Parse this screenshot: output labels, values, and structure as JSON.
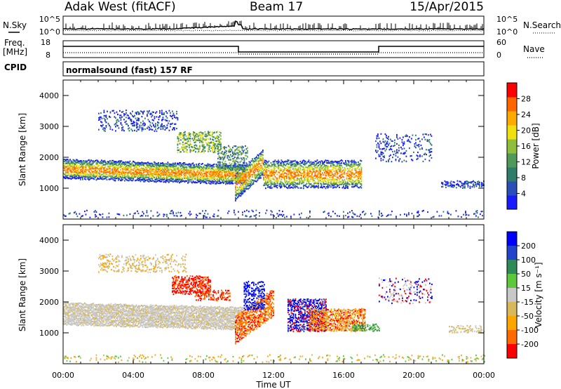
{
  "header": {
    "radar": "Adak West (fitACF)",
    "beam": "Beam 17",
    "date": "15/Apr/2015"
  },
  "noise_panel": {
    "left_label": "N.Sky",
    "right_label": "N.Search",
    "left_ticks": [
      "10^5",
      "10^0"
    ],
    "right_ticks": [
      "10^5",
      "10^0"
    ]
  },
  "freq_panel": {
    "left_label_1": "Freq.",
    "left_label_2": "[MHz]",
    "left_ticks": [
      "18",
      "8"
    ],
    "right_label": "Nave",
    "right_ticks": [
      "60",
      "0"
    ],
    "cpid_label": "CPID",
    "mode": "normalsound (fast) 157 RF"
  },
  "colors": {
    "power": [
      "#1a1aff",
      "#2a4fb8",
      "#2e7d6a",
      "#4f9a58",
      "#8fbf3a",
      "#f0e010",
      "#ffaa00",
      "#ff6600",
      "#ff0000"
    ],
    "velocity": [
      "#ff0000",
      "#ff6a00",
      "#ffa500",
      "#d8b85a",
      "#c8c8c8",
      "#5cc83a",
      "#2e8b57",
      "#2244cc",
      "#0000ff"
    ]
  },
  "chart_data": [
    {
      "type": "heatmap",
      "name": "power",
      "ylabel": "Slant Range [km]",
      "ylim": [
        0,
        4500
      ],
      "y_ticks": [
        "1000",
        "2000",
        "3000",
        "4000"
      ],
      "x_ticks": [
        "00:00",
        "04:00",
        "08:00",
        "12:00",
        "16:00",
        "20:00",
        "00:00"
      ],
      "xlim_hours": [
        0,
        24
      ],
      "colorbar": {
        "label": "Power [dB]",
        "ticks": [
          "4",
          "8",
          "12",
          "16",
          "20",
          "24",
          "28"
        ],
        "range": [
          0,
          30
        ]
      },
      "features": [
        {
          "desc": "main band",
          "x_hours": [
            0,
            10.5
          ],
          "range_km": [
            1400,
            1700
          ],
          "power_db": 20
        },
        {
          "desc": "descending band",
          "x_hours": [
            9.8,
            11.3
          ],
          "range_km": [
            700,
            1600
          ],
          "power_db": 24
        },
        {
          "desc": "afternoon band",
          "x_hours": [
            12,
            17
          ],
          "range_km": [
            1100,
            1900
          ],
          "power_db": 16
        },
        {
          "desc": "upper echoes",
          "x_hours": [
            2,
            6
          ],
          "range_km": [
            2900,
            3500
          ],
          "power_db": 6
        },
        {
          "desc": "mid patch",
          "x_hours": [
            6.5,
            8.5
          ],
          "range_km": [
            2300,
            2800
          ],
          "power_db": 14
        },
        {
          "desc": "evening echoes",
          "x_hours": [
            17.5,
            21
          ],
          "range_km": [
            2000,
            2800
          ],
          "power_db": 6
        }
      ]
    },
    {
      "type": "heatmap",
      "name": "velocity",
      "ylabel": "Slant Range [km]",
      "ylim": [
        0,
        4500
      ],
      "y_ticks": [
        "1000",
        "2000",
        "3000",
        "4000"
      ],
      "x_ticks": [
        "00:00",
        "04:00",
        "08:00",
        "12:00",
        "16:00",
        "20:00",
        "00:00"
      ],
      "xlim_hours": [
        0,
        24
      ],
      "xlabel": "Time UT",
      "colorbar": {
        "label": "Velocity [m s⁻¹]",
        "ticks": [
          "200",
          "100",
          "50",
          "15",
          "-15",
          "-50",
          "-100",
          "-200"
        ],
        "range": [
          -250,
          250
        ]
      },
      "features": [
        {
          "desc": "ground scatter band",
          "x_hours": [
            0,
            10.5
          ],
          "range_km": [
            1300,
            1900
          ],
          "velocity": 0
        },
        {
          "desc": "red patch",
          "x_hours": [
            6.3,
            8.3
          ],
          "range_km": [
            2300,
            2800
          ],
          "velocity": -200
        },
        {
          "desc": "descending band",
          "x_hours": [
            10,
            12
          ],
          "range_km": [
            700,
            1600
          ],
          "velocity": -150
        },
        {
          "desc": "blue band",
          "x_hours": [
            13,
            15
          ],
          "range_km": [
            1100,
            2100
          ],
          "velocity": 200
        },
        {
          "desc": "orange band",
          "x_hours": [
            14,
            17
          ],
          "range_km": [
            1100,
            1800
          ],
          "velocity": -80
        }
      ]
    }
  ]
}
